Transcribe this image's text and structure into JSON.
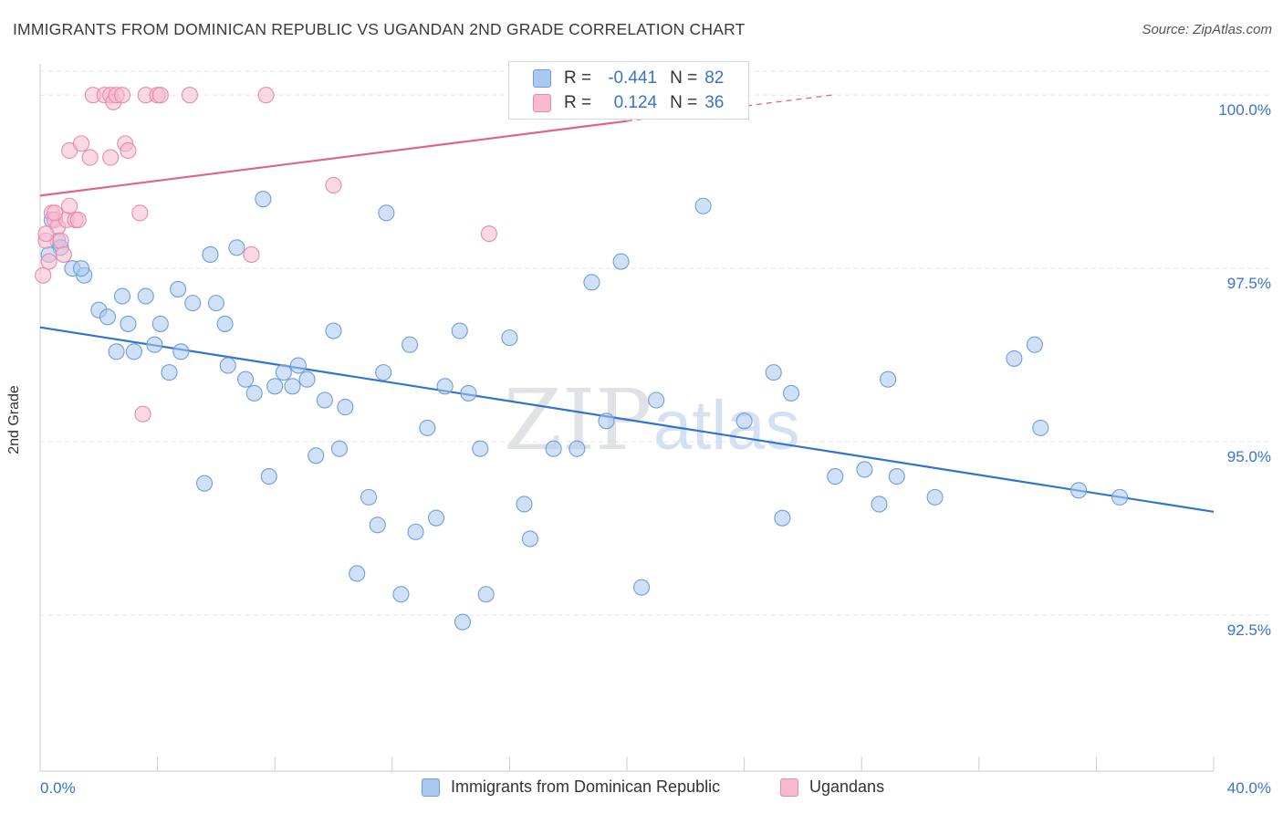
{
  "title": "IMMIGRANTS FROM DOMINICAN REPUBLIC VS UGANDAN 2ND GRADE CORRELATION CHART",
  "source": "Source: ZipAtlas.com",
  "watermark": {
    "zip": "ZIP",
    "atlas": "atlas"
  },
  "legend": {
    "r_label": "R =",
    "n_label": "N =",
    "series": [
      {
        "r": "-0.441",
        "n": "82"
      },
      {
        "r": "0.124",
        "n": "36"
      }
    ]
  },
  "colors": {
    "blue_fill": "#aac8f0",
    "blue_stroke": "#6f9fd8",
    "blue_line": "#2f74cf",
    "pink_fill": "#f7b9cd",
    "pink_stroke": "#e98aaa",
    "pink_line": "#e0628a",
    "axis_text": "#3a74c9",
    "grid": "#e2e6ec"
  },
  "chart_data": {
    "type": "scatter",
    "xlim": [
      0,
      40
    ],
    "ylim": [
      90.25,
      100.45
    ],
    "x_ticks_labels": [
      "0.0%",
      "40.0%"
    ],
    "y_ticks": [
      92.5,
      95.0,
      97.5,
      100.0
    ],
    "y_tick_labels": [
      "92.5%",
      "95.0%",
      "97.5%",
      "100.0%"
    ],
    "ylabel": "2nd Grade",
    "grid": true,
    "legend_position": "top-center",
    "series": [
      {
        "name": "Immigrants from Dominican Republic",
        "color": "blue",
        "trend": {
          "x0": 0,
          "y0": 96.65,
          "x1": 40,
          "y1": 93.99
        },
        "points": [
          [
            0.4,
            98.2
          ],
          [
            0.6,
            97.9
          ],
          [
            0.7,
            97.8
          ],
          [
            1.1,
            97.5
          ],
          [
            1.5,
            97.4
          ],
          [
            1.4,
            97.5
          ],
          [
            2.0,
            96.9
          ],
          [
            2.3,
            96.8
          ],
          [
            2.8,
            97.1
          ],
          [
            2.6,
            96.3
          ],
          [
            3.0,
            96.7
          ],
          [
            3.2,
            96.3
          ],
          [
            3.6,
            97.1
          ],
          [
            3.9,
            96.4
          ],
          [
            4.1,
            96.7
          ],
          [
            4.4,
            96.0
          ],
          [
            4.7,
            97.2
          ],
          [
            4.8,
            96.3
          ],
          [
            5.2,
            97.0
          ],
          [
            5.6,
            94.4
          ],
          [
            5.8,
            97.7
          ],
          [
            6.0,
            97.0
          ],
          [
            6.3,
            96.7
          ],
          [
            6.4,
            96.1
          ],
          [
            6.7,
            97.8
          ],
          [
            7.0,
            95.9
          ],
          [
            7.3,
            95.7
          ],
          [
            7.6,
            98.5
          ],
          [
            7.8,
            94.5
          ],
          [
            8.0,
            95.8
          ],
          [
            8.3,
            96.0
          ],
          [
            8.6,
            95.8
          ],
          [
            8.8,
            96.1
          ],
          [
            9.1,
            95.9
          ],
          [
            9.4,
            94.8
          ],
          [
            9.7,
            95.6
          ],
          [
            10.0,
            96.6
          ],
          [
            10.2,
            94.9
          ],
          [
            10.4,
            95.5
          ],
          [
            10.8,
            93.1
          ],
          [
            11.2,
            94.2
          ],
          [
            11.5,
            93.8
          ],
          [
            11.8,
            98.3
          ],
          [
            11.7,
            96.0
          ],
          [
            12.3,
            92.8
          ],
          [
            12.6,
            96.4
          ],
          [
            12.8,
            93.7
          ],
          [
            13.2,
            95.2
          ],
          [
            13.5,
            93.9
          ],
          [
            13.8,
            95.8
          ],
          [
            14.3,
            96.6
          ],
          [
            14.4,
            92.4
          ],
          [
            14.6,
            95.7
          ],
          [
            15.0,
            94.9
          ],
          [
            15.2,
            92.8
          ],
          [
            16.0,
            96.5
          ],
          [
            16.5,
            94.1
          ],
          [
            16.7,
            93.6
          ],
          [
            17.5,
            94.9
          ],
          [
            18.3,
            94.9
          ],
          [
            18.8,
            97.3
          ],
          [
            19.3,
            95.3
          ],
          [
            19.8,
            97.6
          ],
          [
            20.5,
            92.9
          ],
          [
            21.0,
            95.6
          ],
          [
            22.6,
            98.4
          ],
          [
            24.0,
            95.3
          ],
          [
            25.0,
            96.0
          ],
          [
            25.3,
            93.9
          ],
          [
            25.6,
            95.7
          ],
          [
            27.1,
            94.5
          ],
          [
            28.1,
            94.6
          ],
          [
            28.6,
            94.1
          ],
          [
            28.9,
            95.9
          ],
          [
            29.2,
            94.5
          ],
          [
            30.5,
            94.2
          ],
          [
            33.2,
            96.2
          ],
          [
            33.9,
            96.4
          ],
          [
            34.1,
            95.2
          ],
          [
            35.4,
            94.3
          ],
          [
            36.8,
            94.2
          ],
          [
            0.3,
            97.7
          ]
        ]
      },
      {
        "name": "Ugandans",
        "color": "pink",
        "trend": {
          "x0": 0,
          "y0": 98.55,
          "x1": 40,
          "y1": 100.7,
          "solid_until_x": 20.0
        },
        "points": [
          [
            0.1,
            97.4
          ],
          [
            0.2,
            97.9
          ],
          [
            0.3,
            97.6
          ],
          [
            0.4,
            98.3
          ],
          [
            0.5,
            98.2
          ],
          [
            0.6,
            98.1
          ],
          [
            0.7,
            97.9
          ],
          [
            0.8,
            97.7
          ],
          [
            0.9,
            98.2
          ],
          [
            1.0,
            98.4
          ],
          [
            1.2,
            98.2
          ],
          [
            1.3,
            98.2
          ],
          [
            1.0,
            99.2
          ],
          [
            1.4,
            99.3
          ],
          [
            1.7,
            99.1
          ],
          [
            2.4,
            99.1
          ],
          [
            2.9,
            99.3
          ],
          [
            3.0,
            99.2
          ],
          [
            3.4,
            98.3
          ],
          [
            3.5,
            95.4
          ],
          [
            1.8,
            100.0
          ],
          [
            2.2,
            100.0
          ],
          [
            2.4,
            100.0
          ],
          [
            2.5,
            99.9
          ],
          [
            2.6,
            100.0
          ],
          [
            2.8,
            100.0
          ],
          [
            3.6,
            100.0
          ],
          [
            4.0,
            100.0
          ],
          [
            4.1,
            100.0
          ],
          [
            5.1,
            100.0
          ],
          [
            7.7,
            100.0
          ],
          [
            7.2,
            97.7
          ],
          [
            10.0,
            98.7
          ],
          [
            15.3,
            98.0
          ],
          [
            0.2,
            98.0
          ],
          [
            0.5,
            98.3
          ]
        ]
      }
    ]
  }
}
